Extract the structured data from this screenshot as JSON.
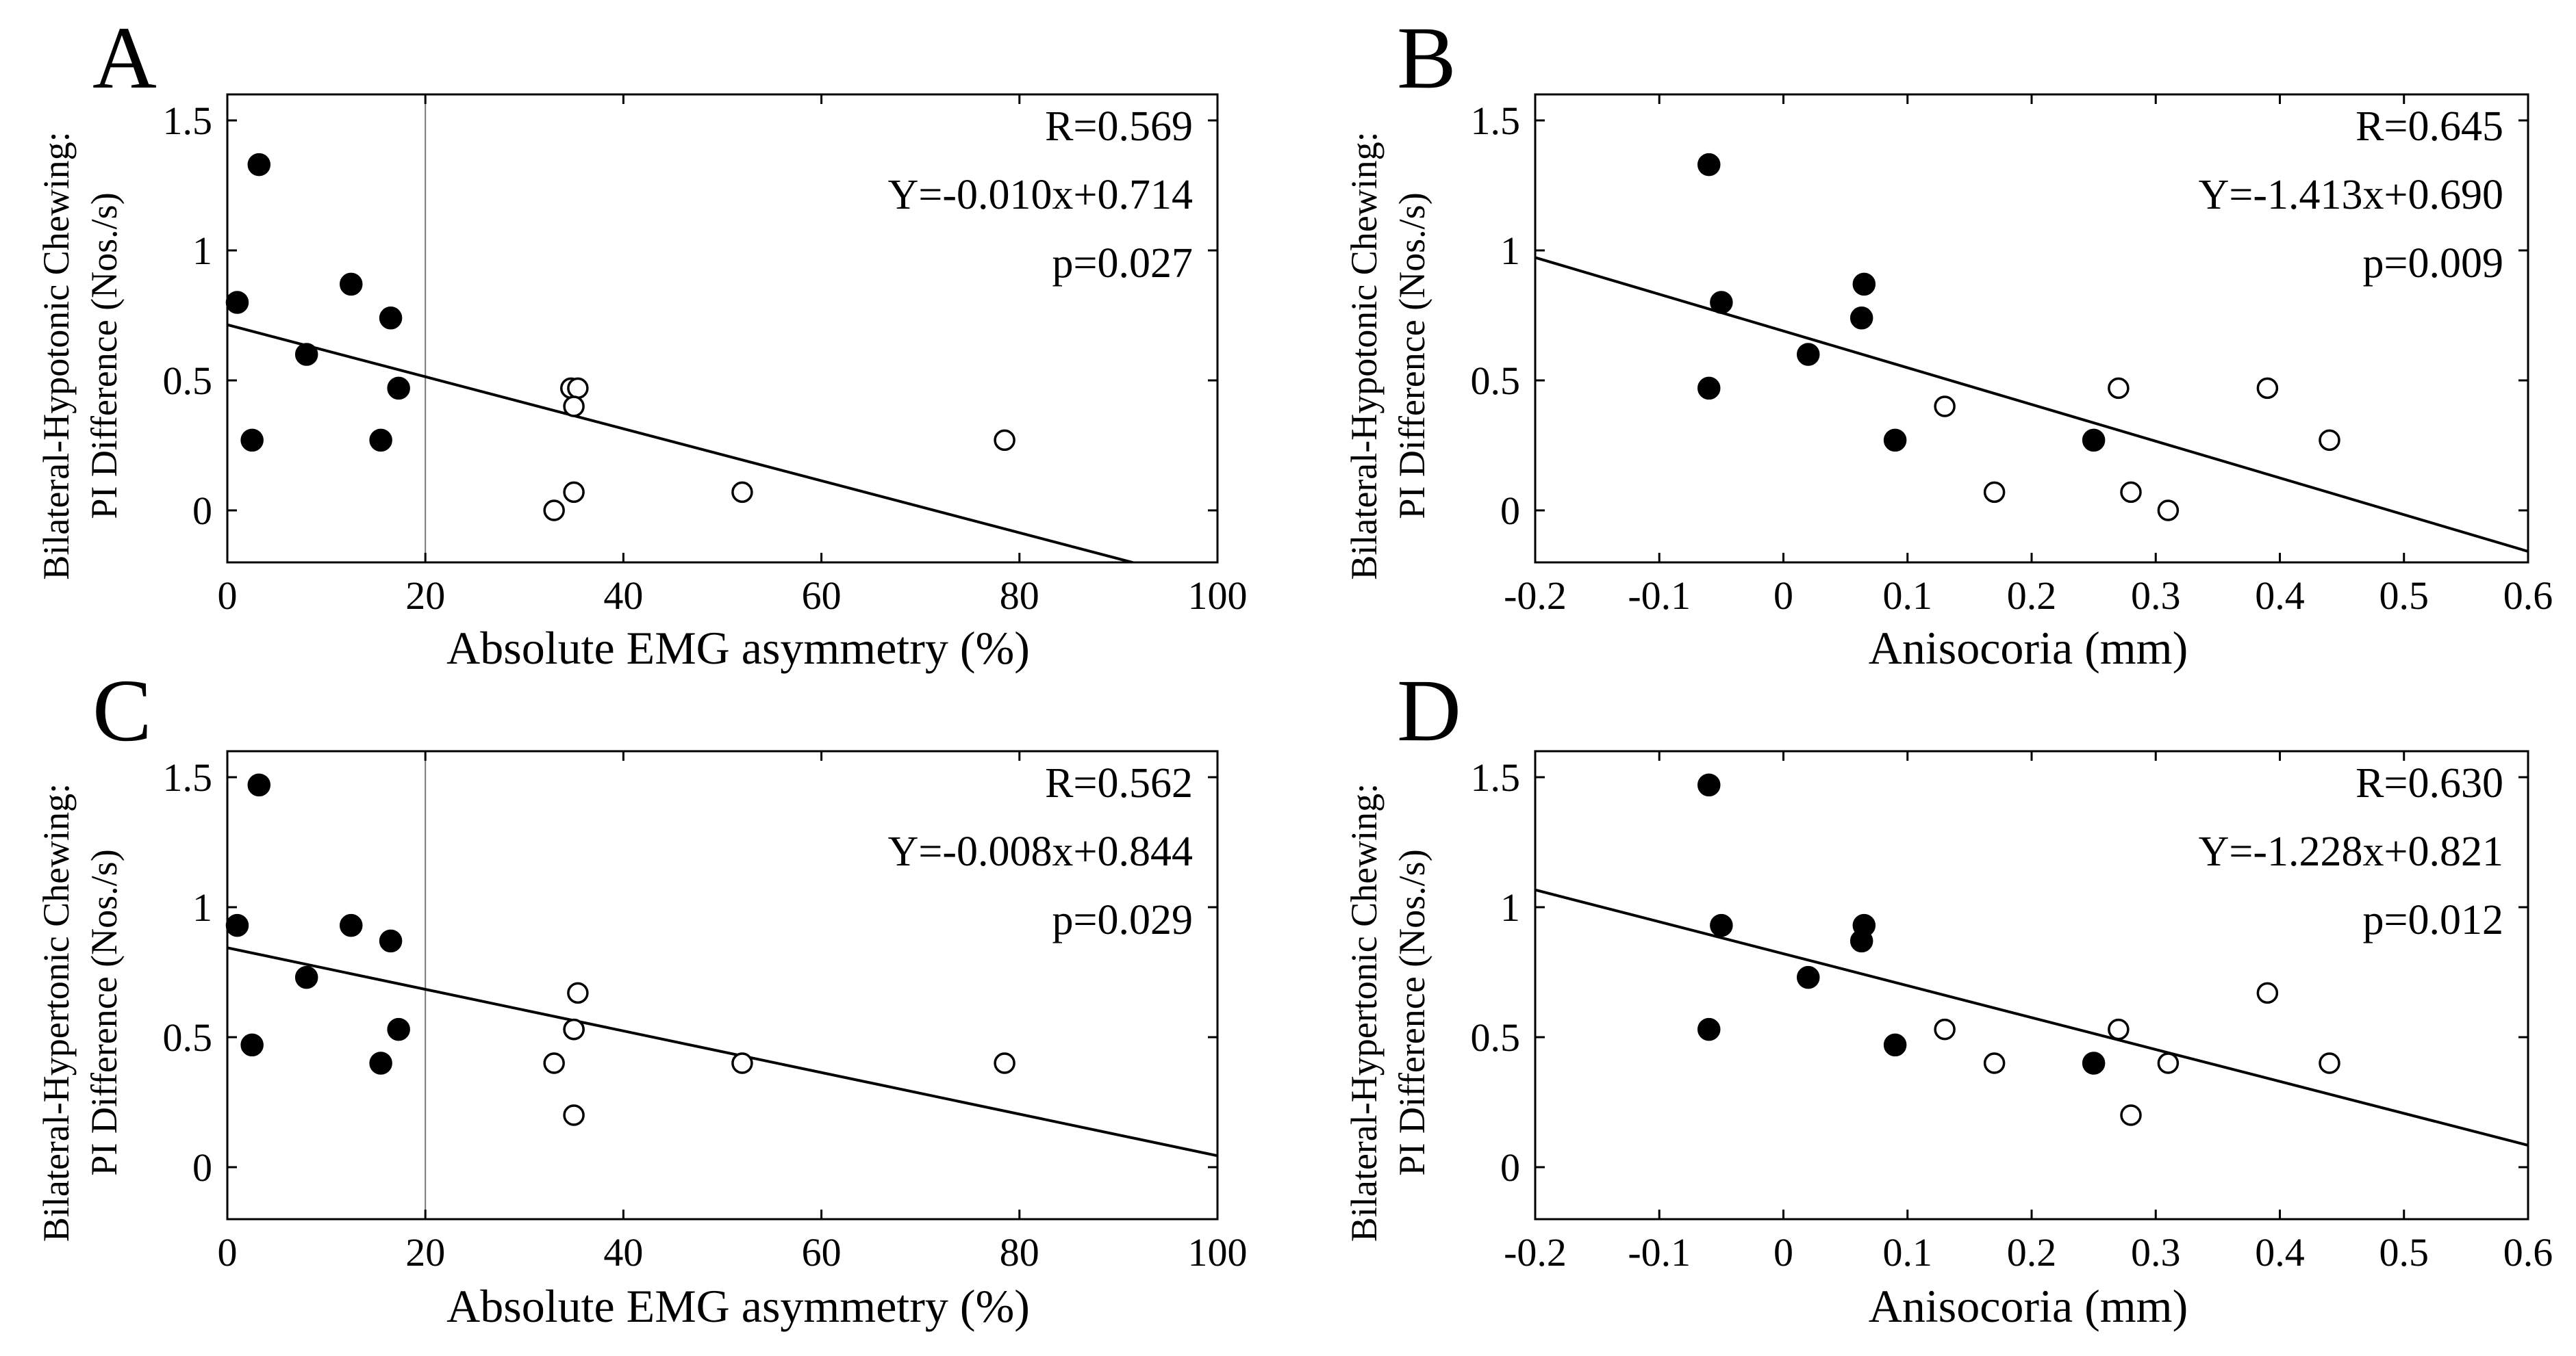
{
  "figure": {
    "panels": [
      "A",
      "B",
      "C",
      "D"
    ]
  },
  "chart_data": [
    {
      "panel": "A",
      "type": "scatter",
      "title": "",
      "xlabel": "Absolute EMG asymmetry (%)",
      "ylabel_line1": "Bilateral-Hypotonic Chewing:",
      "ylabel_line2": "PI Difference (Nos./s)",
      "xlim": [
        0,
        100
      ],
      "ylim": [
        -0.2,
        1.6
      ],
      "xticks": [
        0,
        20,
        40,
        60,
        80,
        100
      ],
      "xtick_labels": [
        "0",
        "20",
        "40",
        "60",
        "80",
        "100"
      ],
      "yticks": [
        0,
        0.5,
        1,
        1.5
      ],
      "ytick_labels": [
        "0",
        "0.5",
        "1",
        "1.5"
      ],
      "vline": 20,
      "regression": {
        "slope": -0.01,
        "intercept": 0.714
      },
      "stats": [
        "R=0.569",
        "Y=-0.010x+0.714",
        "p=0.027"
      ],
      "series": [
        {
          "name": "filled",
          "filled": true,
          "x": [
            1,
            3.2,
            2.5,
            8,
            12.5,
            15.5,
            16.5,
            17.3
          ],
          "y": [
            0.8,
            1.33,
            0.27,
            0.6,
            0.87,
            0.27,
            0.74,
            0.47
          ]
        },
        {
          "name": "open",
          "filled": false,
          "x": [
            33,
            34.7,
            35.4,
            35,
            35,
            52,
            78.5
          ],
          "y": [
            0.0,
            0.47,
            0.47,
            0.4,
            0.07,
            0.07,
            0.27
          ]
        }
      ]
    },
    {
      "panel": "B",
      "type": "scatter",
      "title": "",
      "xlabel": "Anisocoria (mm)",
      "ylabel_line1": "Bilateral-Hypotonic Chewing:",
      "ylabel_line2": "PI Difference (Nos./s)",
      "xlim": [
        -0.2,
        0.6
      ],
      "ylim": [
        -0.2,
        1.6
      ],
      "xticks": [
        -0.2,
        -0.1,
        0,
        0.1,
        0.2,
        0.3,
        0.4,
        0.5,
        0.6
      ],
      "xtick_labels": [
        "-0.2",
        "-0.1",
        "0",
        "0.1",
        "0.2",
        "0.3",
        "0.4",
        "0.5",
        "0.6"
      ],
      "yticks": [
        0,
        0.5,
        1,
        1.5
      ],
      "ytick_labels": [
        "0",
        "0.5",
        "1",
        "1.5"
      ],
      "vline": null,
      "regression": {
        "slope": -1.413,
        "intercept": 0.69
      },
      "stats": [
        "R=0.645",
        "Y=-1.413x+0.690",
        "p=0.009"
      ],
      "series": [
        {
          "name": "filled",
          "filled": true,
          "x": [
            -0.06,
            -0.06,
            -0.05,
            0.02,
            0.063,
            0.065,
            0.09,
            0.25
          ],
          "y": [
            1.33,
            0.47,
            0.8,
            0.6,
            0.74,
            0.87,
            0.27,
            0.27
          ]
        },
        {
          "name": "open",
          "filled": false,
          "x": [
            0.13,
            0.17,
            0.27,
            0.28,
            0.31,
            0.39,
            0.44
          ],
          "y": [
            0.4,
            0.07,
            0.47,
            0.07,
            0.0,
            0.47,
            0.27
          ]
        }
      ]
    },
    {
      "panel": "C",
      "type": "scatter",
      "title": "",
      "xlabel": "Absolute EMG asymmetry (%)",
      "ylabel_line1": "Bilateral-Hypertonic Chewing:",
      "ylabel_line2": "PI Difference (Nos./s)",
      "xlim": [
        0,
        100
      ],
      "ylim": [
        -0.2,
        1.6
      ],
      "xticks": [
        0,
        20,
        40,
        60,
        80,
        100
      ],
      "xtick_labels": [
        "0",
        "20",
        "40",
        "60",
        "80",
        "100"
      ],
      "yticks": [
        0,
        0.5,
        1,
        1.5
      ],
      "ytick_labels": [
        "0",
        "0.5",
        "1",
        "1.5"
      ],
      "vline": 20,
      "regression": {
        "slope": -0.008,
        "intercept": 0.844
      },
      "stats": [
        "R=0.562",
        "Y=-0.008x+0.844",
        "p=0.029"
      ],
      "series": [
        {
          "name": "filled",
          "filled": true,
          "x": [
            1,
            3.2,
            2.5,
            8,
            12.5,
            15.5,
            16.5,
            17.3
          ],
          "y": [
            0.93,
            1.47,
            0.47,
            0.73,
            0.93,
            0.4,
            0.87,
            0.53
          ]
        },
        {
          "name": "open",
          "filled": false,
          "x": [
            33,
            35,
            35.4,
            35,
            35,
            52,
            78.5
          ],
          "y": [
            0.4,
            0.53,
            0.67,
            0.53,
            0.2,
            0.4,
            0.4
          ]
        }
      ]
    },
    {
      "panel": "D",
      "type": "scatter",
      "title": "",
      "xlabel": "Anisocoria (mm)",
      "ylabel_line1": "Bilateral-Hypertonic Chewing:",
      "ylabel_line2": "PI Difference (Nos./s)",
      "xlim": [
        -0.2,
        0.6
      ],
      "ylim": [
        -0.2,
        1.6
      ],
      "xticks": [
        -0.2,
        -0.1,
        0,
        0.1,
        0.2,
        0.3,
        0.4,
        0.5,
        0.6
      ],
      "xtick_labels": [
        "-0.2",
        "-0.1",
        "0",
        "0.1",
        "0.2",
        "0.3",
        "0.4",
        "0.5",
        "0.6"
      ],
      "yticks": [
        0,
        0.5,
        1,
        1.5
      ],
      "ytick_labels": [
        "0",
        "0.5",
        "1",
        "1.5"
      ],
      "vline": null,
      "regression": {
        "slope": -1.228,
        "intercept": 0.821
      },
      "stats": [
        "R=0.630",
        "Y=-1.228x+0.821",
        "p=0.012"
      ],
      "series": [
        {
          "name": "filled",
          "filled": true,
          "x": [
            -0.06,
            -0.06,
            -0.05,
            0.02,
            0.063,
            0.065,
            0.09,
            0.25
          ],
          "y": [
            1.47,
            0.53,
            0.93,
            0.73,
            0.87,
            0.93,
            0.47,
            0.4
          ]
        },
        {
          "name": "open",
          "filled": false,
          "x": [
            0.13,
            0.17,
            0.27,
            0.28,
            0.31,
            0.39,
            0.44
          ],
          "y": [
            0.53,
            0.4,
            0.53,
            0.2,
            0.4,
            0.67,
            0.4
          ]
        }
      ]
    }
  ]
}
